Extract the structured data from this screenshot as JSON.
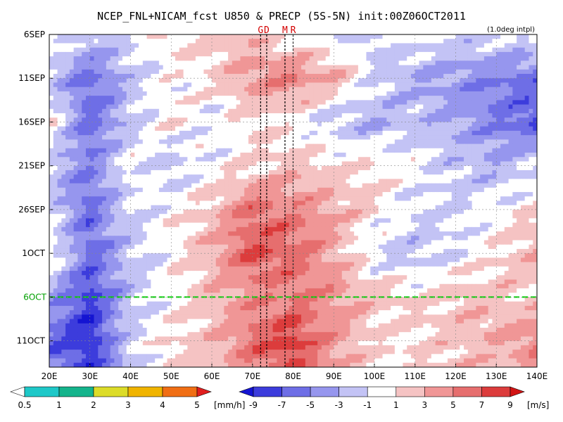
{
  "chart_data": {
    "type": "heatmap",
    "title": "NCEP_FNL+NICAM_fcst U850 & PRECP (5S-5N) init:00Z06OCT2011",
    "note": "(1.0deg intpl)",
    "x_ticks": [
      "20E",
      "30E",
      "40E",
      "50E",
      "60E",
      "70E",
      "80E",
      "90E",
      "100E",
      "110E",
      "120E",
      "130E",
      "140E"
    ],
    "x_values": [
      20,
      30,
      40,
      50,
      60,
      70,
      80,
      90,
      100,
      110,
      120,
      130,
      140
    ],
    "xlim": [
      20,
      140
    ],
    "y_ticks": [
      "6SEP",
      "11SEP",
      "16SEP",
      "21SEP",
      "26SEP",
      "1OCT",
      "6OCT",
      "11OCT"
    ],
    "ylim": [
      "6SEP",
      "14OCT"
    ],
    "forecast_init_label": "6OCT",
    "markers": [
      {
        "label": "G",
        "lon": 72
      },
      {
        "label": "D",
        "lon": 73.5
      },
      {
        "label": "M",
        "lon": 78
      },
      {
        "label": "R",
        "lon": 80
      }
    ],
    "precip_legend": {
      "unit": "[mm/h]",
      "levels": [
        "0.5",
        "1",
        "2",
        "3",
        "4",
        "5"
      ],
      "colors": [
        "#ffffff",
        "#1ec8c8",
        "#14b48c",
        "#dcdc28",
        "#f0b400",
        "#f06e14",
        "#e11e1e"
      ]
    },
    "wind_legend": {
      "unit": "[m/s]",
      "levels": [
        "-9",
        "-7",
        "-5",
        "-3",
        "-1",
        "1",
        "3",
        "5",
        "7",
        "9"
      ],
      "colors": [
        "#1414d2",
        "#3c3cdc",
        "#6e6ee6",
        "#9696ee",
        "#c3c3f5",
        "#ffffff",
        "#f5c3c3",
        "#f09696",
        "#e66e6e",
        "#dc3c3c",
        "#d21414"
      ]
    },
    "u850_field": {
      "description": "approximate zonal wind (m/s) at 850 hPa, lon 20E-140E, grid rows top to bottom",
      "rows": [
        {
          "date": "6SEP",
          "lon": [
            20,
            30,
            40,
            50,
            60,
            70,
            80,
            90,
            100,
            110,
            120,
            130,
            140
          ],
          "u": [
            1,
            -2,
            -1,
            1,
            2,
            2,
            0,
            -1,
            -2,
            0,
            -1,
            -1,
            0
          ]
        },
        {
          "date": "11SEP",
          "lon": [
            20,
            30,
            40,
            50,
            60,
            70,
            80,
            90,
            100,
            110,
            120,
            130,
            140
          ],
          "u": [
            -2,
            -6,
            -2,
            0,
            1,
            4,
            5,
            3,
            -1,
            -3,
            -4,
            -5,
            -6
          ]
        },
        {
          "date": "16SEP",
          "lon": [
            20,
            30,
            40,
            50,
            60,
            70,
            80,
            90,
            100,
            110,
            120,
            130,
            140
          ],
          "u": [
            1,
            -6,
            -2,
            1,
            -1,
            1,
            0,
            -2,
            -3,
            -2,
            -3,
            -5,
            -7
          ]
        },
        {
          "date": "21SEP",
          "lon": [
            20,
            30,
            40,
            50,
            60,
            70,
            80,
            90,
            100,
            110,
            120,
            130,
            140
          ],
          "u": [
            -2,
            -5,
            0,
            -2,
            0,
            1,
            2,
            1,
            1,
            0,
            -2,
            -3,
            -1
          ]
        },
        {
          "date": "26SEP",
          "lon": [
            20,
            30,
            40,
            50,
            60,
            70,
            80,
            90,
            100,
            110,
            120,
            130,
            140
          ],
          "u": [
            -1,
            -6,
            -1,
            0,
            2,
            6,
            5,
            3,
            1,
            -1,
            -1,
            0,
            1
          ]
        },
        {
          "date": "1OCT",
          "lon": [
            20,
            30,
            40,
            50,
            60,
            70,
            80,
            90,
            100,
            110,
            120,
            130,
            140
          ],
          "u": [
            1,
            -6,
            -2,
            0,
            3,
            7,
            6,
            3,
            -1,
            -2,
            -1,
            1,
            3
          ]
        },
        {
          "date": "6OCT",
          "lon": [
            20,
            30,
            40,
            50,
            60,
            70,
            80,
            90,
            100,
            110,
            120,
            130,
            140
          ],
          "u": [
            -3,
            -8,
            -2,
            0,
            2,
            4,
            5,
            4,
            2,
            1,
            2,
            2,
            1
          ]
        },
        {
          "date": "11OCT",
          "lon": [
            20,
            30,
            40,
            50,
            60,
            70,
            80,
            90,
            100,
            110,
            120,
            130,
            140
          ],
          "u": [
            -6,
            -9,
            -1,
            1,
            2,
            6,
            8,
            4,
            1,
            1,
            2,
            3,
            5
          ]
        },
        {
          "date": "14OCT",
          "lon": [
            20,
            30,
            40,
            50,
            60,
            70,
            80,
            90,
            100,
            110,
            120,
            130,
            140
          ],
          "u": [
            -5,
            -8,
            -2,
            1,
            2,
            5,
            7,
            3,
            1,
            1,
            2,
            2,
            4
          ]
        }
      ]
    }
  }
}
